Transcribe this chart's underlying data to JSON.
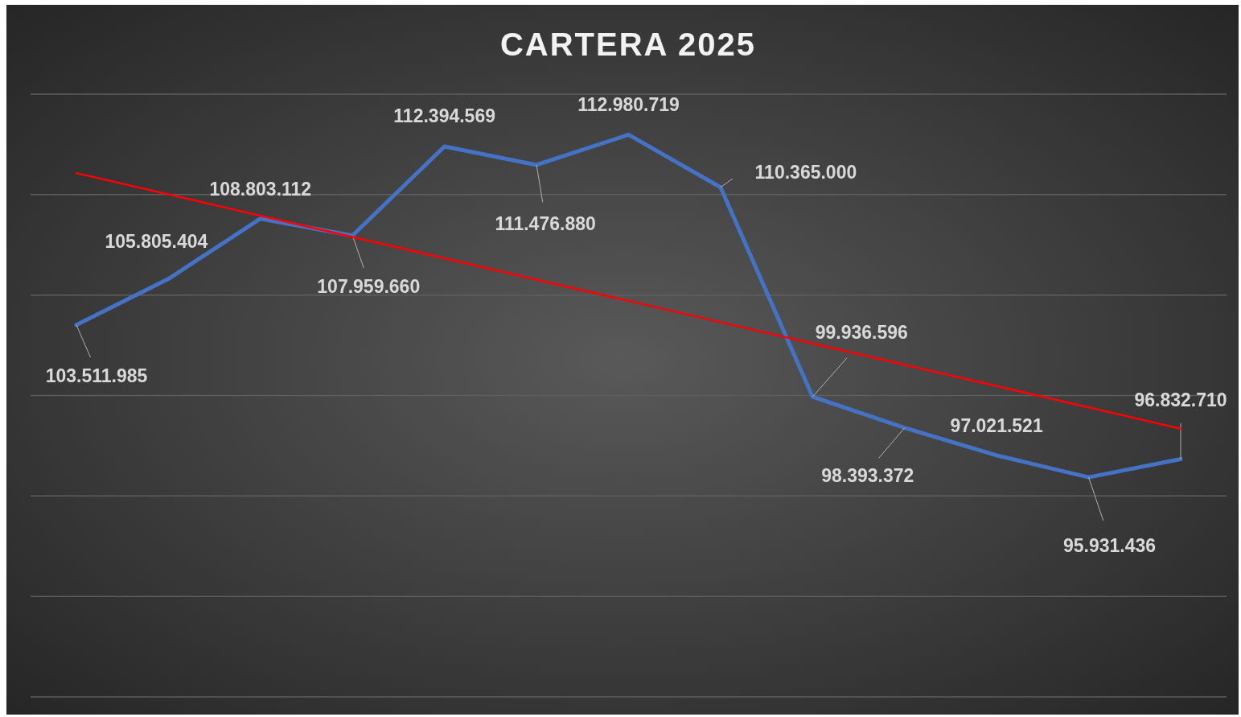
{
  "chart_data": {
    "type": "line",
    "title": "CARTERA 2025",
    "categories": [
      null,
      null,
      null,
      null,
      null,
      null,
      null,
      null,
      null,
      null,
      null,
      null,
      null
    ],
    "series": [
      {
        "color": "#4472c4",
        "values": [
          103511985,
          105805404,
          108803112,
          107959660,
          112394569,
          111476880,
          112980719,
          110365000,
          99936596,
          98393372,
          97021521,
          95931436,
          96832710
        ],
        "value_labels": [
          "103.511.985",
          "105.805.404",
          "108.803.112",
          "107.959.660",
          "112.394.569",
          "111.476.880",
          "112.980.719",
          "110.365.000",
          "99.936.596",
          "98.393.372",
          "97.021.521",
          "95.931.436",
          "96.832.710"
        ]
      },
      {
        "type": "line",
        "color": "#ff0000",
        "values": [
          111070000,
          110010000,
          108950000,
          107890000,
          106830000,
          105770000,
          104710000,
          103650000,
          102590000,
          101530000,
          100470000,
          99410000,
          98350000
        ]
      }
    ],
    "ylim": [
      85000000,
      115000000
    ],
    "yticks": [
      {
        "value": 85000000,
        "label": null
      },
      {
        "value": 90000000,
        "label": null
      },
      {
        "value": 95000000,
        "label": null
      },
      {
        "value": 100000000,
        "label": null
      },
      {
        "value": 105000000,
        "label": null
      },
      {
        "value": 110000000,
        "label": null
      },
      {
        "value": 115000000,
        "label": null
      }
    ],
    "grid": "y"
  }
}
